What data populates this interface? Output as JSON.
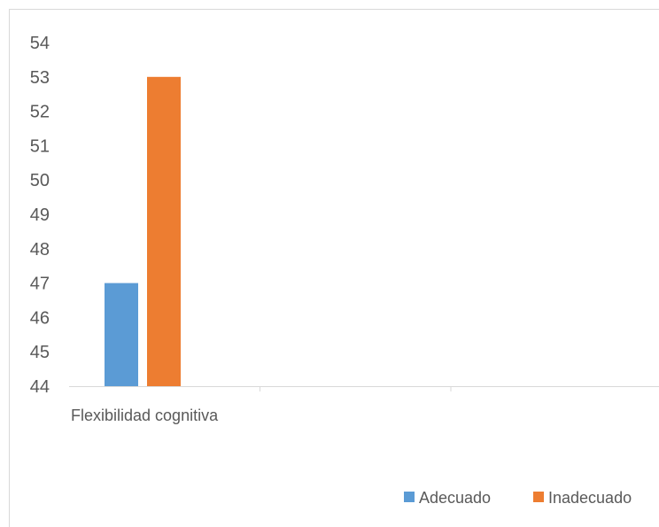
{
  "chart_data": {
    "type": "bar",
    "title": "",
    "xlabel": "",
    "ylabel": "",
    "categories": [
      "Flexibilidad cognitiva",
      "",
      ""
    ],
    "series": [
      {
        "name": "Adecuado",
        "values": [
          47,
          null,
          null
        ],
        "color": "#5B9BD5"
      },
      {
        "name": "Inadecuado",
        "values": [
          53,
          null,
          null
        ],
        "color": "#ED7D31"
      }
    ],
    "ylim": [
      44,
      54
    ],
    "y_ticks": [
      "44",
      "45",
      "46",
      "47",
      "48",
      "49",
      "50",
      "51",
      "52",
      "53",
      "54"
    ],
    "grid": false,
    "legend_position": "bottom-right"
  }
}
